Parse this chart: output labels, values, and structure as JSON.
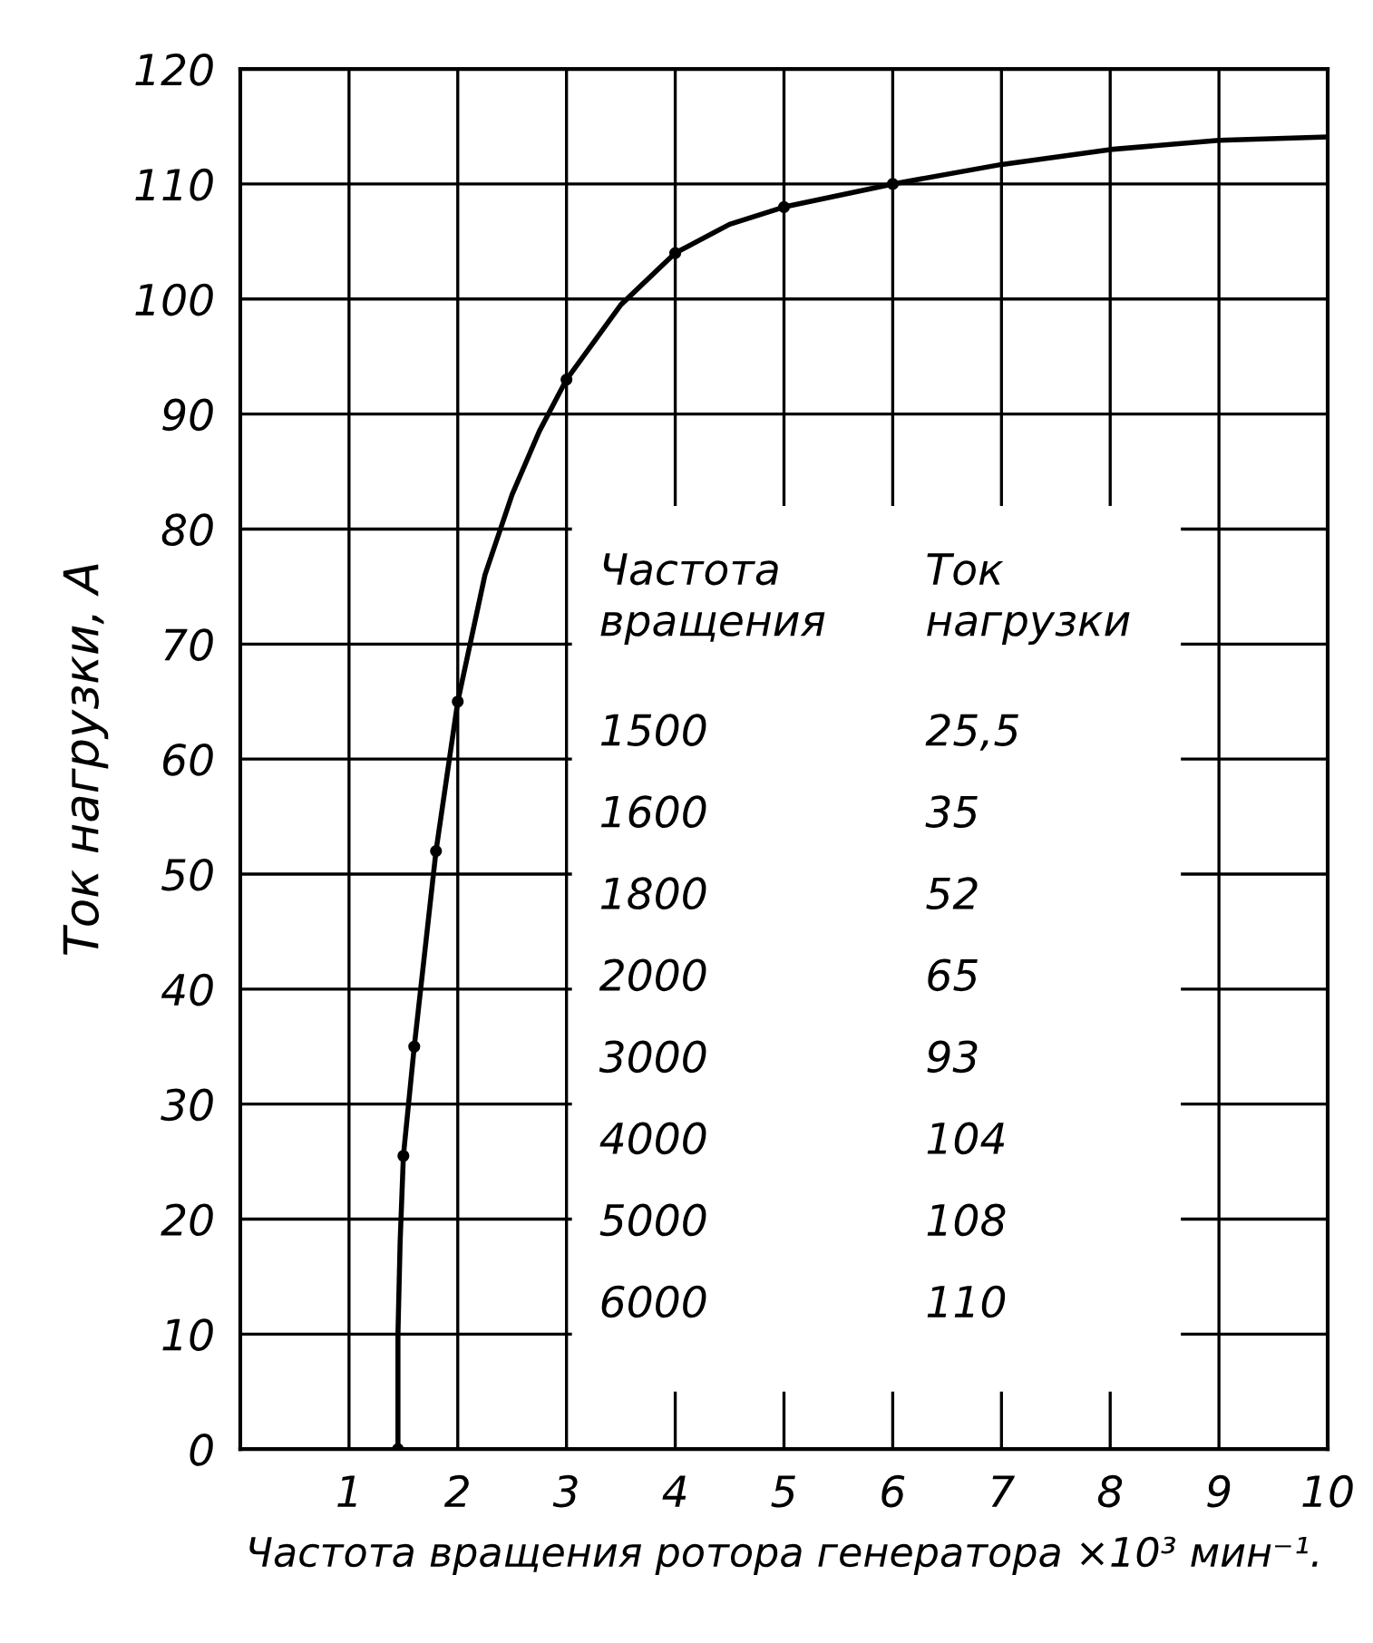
{
  "chart_data": {
    "type": "line",
    "xlabel": "Частота вращения ротора генератора ×10³ мин⁻¹.",
    "ylabel": "Ток нагрузки, А",
    "xlim": [
      0,
      10
    ],
    "xticks": [
      {
        "value": 0,
        "label": null
      },
      1,
      2,
      3,
      4,
      5,
      6,
      7,
      8,
      9,
      10
    ],
    "ylim": [
      0,
      120
    ],
    "yticks": [
      0,
      10,
      20,
      30,
      40,
      50,
      60,
      70,
      80,
      90,
      100,
      110,
      120
    ],
    "grid": true,
    "legend": false,
    "series": [
      {
        "color": "#000000",
        "marker": "none",
        "x": [
          1.45,
          1.45,
          1.47,
          1.5,
          1.6,
          1.8,
          2,
          2.25,
          2.5,
          2.75,
          3,
          3.5,
          4,
          4.5,
          5,
          6,
          7,
          8,
          9,
          10
        ],
        "values": [
          0,
          10,
          18,
          25.5,
          35,
          52,
          65,
          76,
          83,
          88.5,
          93,
          99.5,
          104,
          106.5,
          108,
          110,
          111.7,
          113,
          113.8,
          114.1
        ]
      },
      {
        "type": "scatter",
        "color": "#000000",
        "marker": "circle",
        "x": [
          1.45,
          1.5,
          1.6,
          1.8,
          2,
          3,
          4,
          5,
          6
        ],
        "values": [
          0,
          25.5,
          35,
          52,
          65,
          93,
          104,
          108,
          110
        ]
      }
    ],
    "annotations": [
      "Частота\nвращения",
      "Ток\nнагрузки",
      "1500",
      "25,5",
      "1600",
      "35",
      "1800",
      "52",
      "2000",
      "65",
      "3000",
      "93",
      "4000",
      "104",
      "5000",
      "108",
      "6000",
      "110"
    ]
  }
}
